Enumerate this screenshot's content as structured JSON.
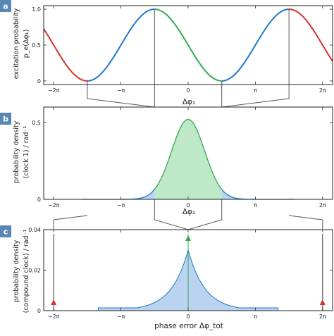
{
  "panel_letters": [
    "a",
    "b",
    "c"
  ],
  "colors": {
    "red": "#d9302c",
    "blue": "#1f78c8",
    "green": "#34a853",
    "green_fill": "#bfe8c8",
    "blue_fill": "#b9d3f0",
    "connector": "#555555",
    "panel_letter_bg": "#5b87b5"
  },
  "chart_data": [
    {
      "panel": "a",
      "type": "line",
      "title": "",
      "ylabel_line1": "excitation probability",
      "ylabel_line2": "p_e(Δφ₁)",
      "xlabel": "Δφ₁",
      "xlim": [
        -6.75,
        6.75
      ],
      "ylim": [
        -0.05,
        1.05
      ],
      "x_ticks": [
        -6.2832,
        -3.1416,
        0,
        3.1416,
        6.2832
      ],
      "x_tick_labels": [
        "−2π",
        "−π",
        "0",
        "π",
        "2π"
      ],
      "y_ticks": [
        0,
        0.5,
        1
      ],
      "y_tick_labels": [
        "0",
        "0.5",
        "1.0"
      ],
      "function": "(1 + cos(x + π/2)) / 2",
      "segments": [
        {
          "x": [
            -6.75,
            -4.7124
          ],
          "color": "red"
        },
        {
          "x": [
            -4.7124,
            -1.5708
          ],
          "color": "blue"
        },
        {
          "x": [
            -1.5708,
            1.5708
          ],
          "color": "green"
        },
        {
          "x": [
            1.5708,
            4.7124
          ],
          "color": "blue"
        },
        {
          "x": [
            4.7124,
            6.75
          ],
          "color": "red"
        }
      ],
      "grid": false,
      "legend": "none"
    },
    {
      "panel": "b",
      "type": "area",
      "title": "",
      "ylabel_line1": "probability density",
      "ylabel_line2": "(clock 1) / rad⁻¹",
      "xlabel": "Δφ₁",
      "xlim": [
        -6.75,
        6.75
      ],
      "ylim": [
        0,
        0.6
      ],
      "x_ticks": [
        -6.2832,
        -3.1416,
        0,
        3.1416,
        6.2832
      ],
      "x_tick_labels": [
        "−2π",
        "−π",
        "0",
        "π",
        "2π"
      ],
      "y_ticks": [
        0,
        0.5
      ],
      "y_tick_labels": [
        "0",
        "0.5"
      ],
      "distribution": {
        "kind": "gaussian",
        "mean": 0,
        "sigma": 0.77,
        "peak": 0.52
      },
      "plotted_range": [
        -5.0,
        5.0
      ],
      "central_region": [
        -1.5708,
        1.5708
      ],
      "grid": false,
      "legend": "none"
    },
    {
      "panel": "c",
      "type": "area",
      "title": "",
      "ylabel_line1": "probability density",
      "ylabel_line2": "(compound clock) / rad⁻¹",
      "xlabel": "phase error Δφ_tot",
      "xlim": [
        -6.75,
        6.75
      ],
      "ylim": [
        0,
        0.04
      ],
      "x_ticks": [
        -6.2832,
        -3.1416,
        0,
        3.1416,
        6.2832
      ],
      "x_tick_labels": [
        "−2π",
        "−π",
        "0",
        "π",
        "2π"
      ],
      "y_ticks": [
        0,
        0.02,
        0.04
      ],
      "y_tick_labels": [
        "0",
        "0.02",
        "0.04"
      ],
      "distribution": {
        "kind": "laplace-like",
        "peak": 0.03,
        "decay": 0.78,
        "baseline": 0.0014
      },
      "plotted_range": [
        -4.2,
        4.2
      ],
      "spikes": [
        {
          "x": -6.2832,
          "color": "red"
        },
        {
          "x": 0,
          "color": "green"
        },
        {
          "x": 6.2832,
          "color": "red"
        }
      ],
      "grid": false,
      "legend": "none"
    }
  ]
}
